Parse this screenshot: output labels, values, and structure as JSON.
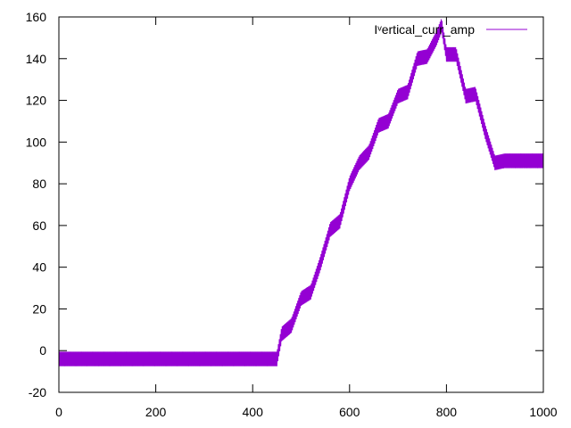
{
  "chart_data": {
    "type": "line",
    "title": "",
    "xlabel": "",
    "ylabel": "",
    "xlim": [
      0,
      1000
    ],
    "ylim": [
      -20,
      160
    ],
    "xticks": [
      0,
      200,
      400,
      600,
      800,
      1000
    ],
    "yticks": [
      -20,
      0,
      20,
      40,
      60,
      80,
      100,
      120,
      140,
      160
    ],
    "grid": false,
    "legend_position": "top-right",
    "series": [
      {
        "name": "Iᵛertical_curr_amp",
        "color": "#9400d3",
        "x": [
          0,
          100,
          200,
          300,
          400,
          450,
          460,
          480,
          500,
          520,
          540,
          560,
          580,
          600,
          620,
          640,
          660,
          680,
          700,
          720,
          740,
          760,
          780,
          790,
          800,
          820,
          840,
          860,
          880,
          900,
          920,
          950,
          980,
          1000
        ],
        "values": [
          -4,
          -4,
          -4,
          -4,
          -4,
          -4,
          8,
          12,
          25,
          28,
          42,
          58,
          62,
          80,
          90,
          95,
          108,
          110,
          122,
          124,
          140,
          141,
          150,
          156,
          142,
          142,
          122,
          123,
          105,
          90,
          91,
          91,
          91,
          91
        ],
        "noise_band": [
          -7,
          0
        ]
      }
    ]
  }
}
